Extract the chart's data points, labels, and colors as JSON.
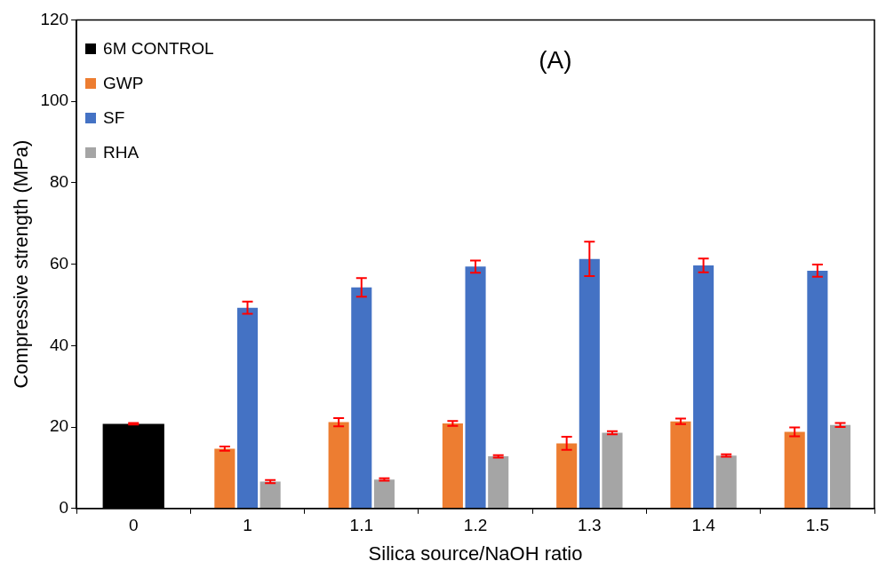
{
  "chart_data": {
    "type": "bar",
    "xlabel": "Silica source/NaOH ratio",
    "ylabel": "Compressive strength (MPa)",
    "categories": [
      "0",
      "1",
      "1.1",
      "1.2",
      "1.3",
      "1.4",
      "1.5"
    ],
    "series": [
      {
        "name": "6M CONTROL",
        "color": "#000000",
        "values": [
          20.8,
          null,
          null,
          null,
          null,
          null,
          null
        ],
        "errors": [
          0.2,
          null,
          null,
          null,
          null,
          null,
          null
        ]
      },
      {
        "name": "GWP",
        "color": "#ed7d31",
        "values": [
          null,
          14.7,
          21.2,
          20.9,
          16.0,
          21.4,
          18.8
        ],
        "errors": [
          null,
          0.5,
          1.0,
          0.6,
          1.6,
          0.7,
          1.1
        ]
      },
      {
        "name": "SF",
        "color": "#4472c4",
        "values": [
          null,
          49.3,
          54.3,
          59.4,
          61.3,
          59.7,
          58.4
        ],
        "errors": [
          null,
          1.5,
          2.3,
          1.5,
          4.2,
          1.7,
          1.5
        ]
      },
      {
        "name": "RHA",
        "color": "#a5a5a5",
        "values": [
          null,
          6.6,
          7.1,
          12.8,
          18.6,
          13.0,
          20.5
        ],
        "errors": [
          null,
          0.4,
          0.3,
          0.3,
          0.4,
          0.3,
          0.5
        ]
      }
    ],
    "ylim": [
      0,
      120
    ],
    "yticks": [
      0,
      20,
      40,
      60,
      80,
      100,
      120
    ],
    "grid": false,
    "legend": "top left",
    "annotations": [
      "(A)"
    ]
  }
}
